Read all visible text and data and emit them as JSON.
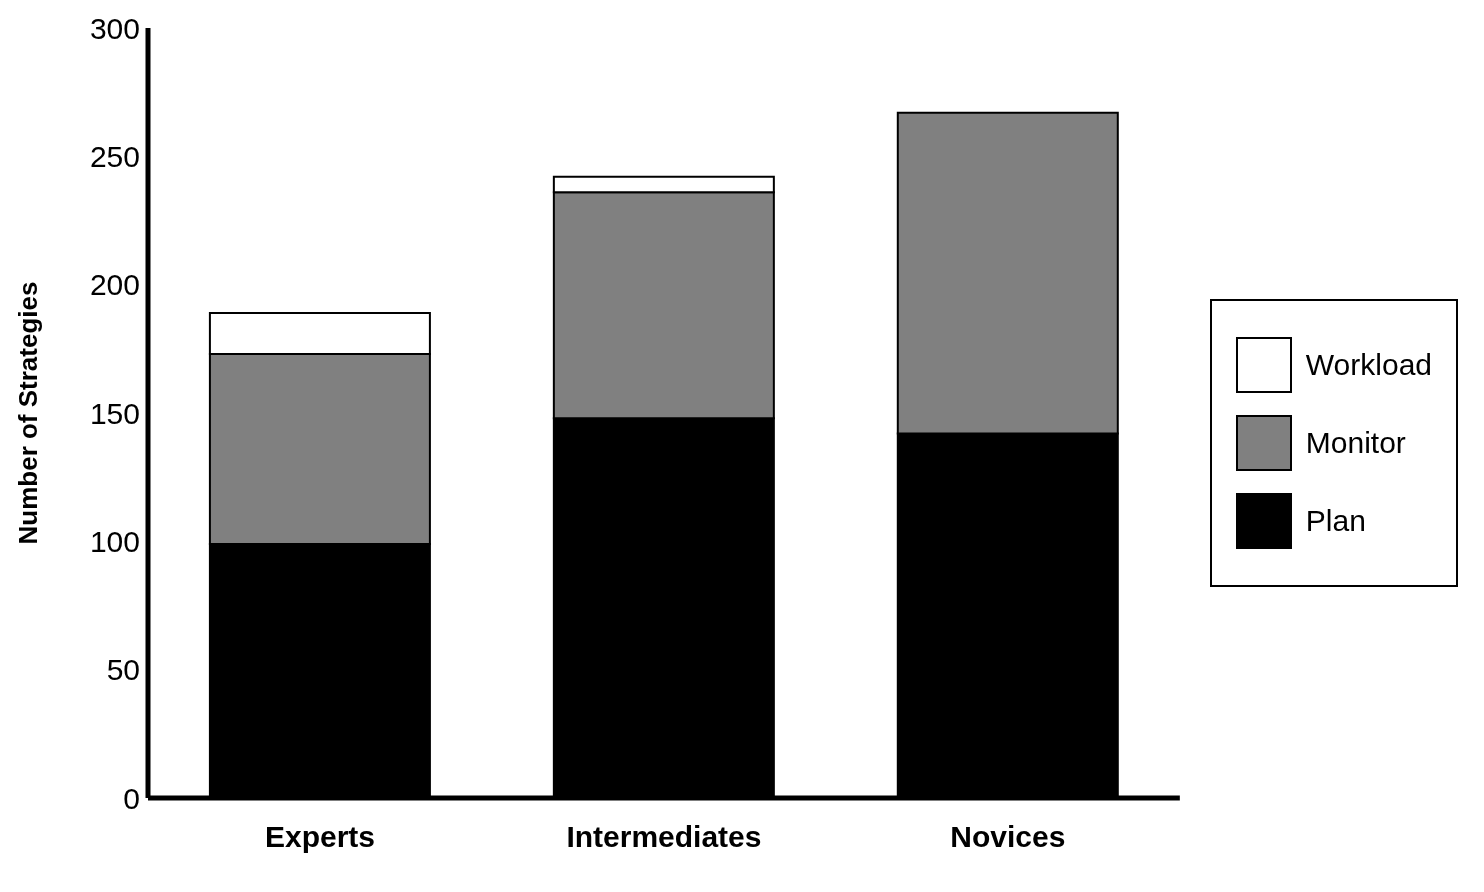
{
  "chart_data": {
    "type": "bar",
    "ylabel": "Number of Strategies",
    "categories": [
      "Experts",
      "Intermediates",
      "Novices"
    ],
    "stacked": true,
    "series": [
      {
        "name": "Plan",
        "color": "#000000",
        "values": [
          99,
          148,
          142
        ]
      },
      {
        "name": "Monitor",
        "color": "#808080",
        "values": [
          74,
          88,
          125
        ]
      },
      {
        "name": "Workload",
        "color": "#ffffff",
        "values": [
          16,
          6,
          0
        ]
      }
    ],
    "ylim": [
      0,
      300
    ],
    "yticks": [
      0,
      50,
      100,
      150,
      200,
      250,
      300
    ],
    "legend": "right",
    "grid": false
  }
}
